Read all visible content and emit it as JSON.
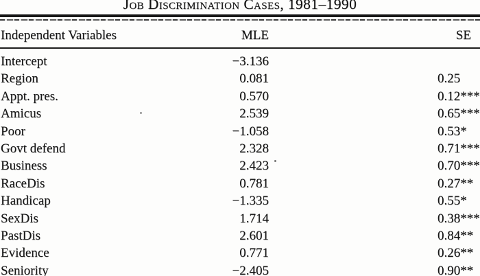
{
  "title": "Job Discrimination Cases, 1981–1990",
  "table": {
    "headers": {
      "variable": "Independent Variables",
      "mle": "MLE",
      "se": "SE"
    },
    "rows": [
      {
        "variable": "Intercept",
        "mle": "−3.136",
        "se": ""
      },
      {
        "variable": "Region",
        "mle": "0.081",
        "se": "0.25"
      },
      {
        "variable": "Appt. pres.",
        "mle": "0.570",
        "se": "0.12***"
      },
      {
        "variable": "Amicus",
        "mle": "2.539",
        "se": "0.65***"
      },
      {
        "variable": "Poor",
        "mle": "−1.058",
        "se": "0.53*"
      },
      {
        "variable": "Govt defend",
        "mle": "2.328",
        "se": "0.71***"
      },
      {
        "variable": "Business",
        "mle": "2.423",
        "se": "0.70***"
      },
      {
        "variable": "RaceDis",
        "mle": "0.781",
        "se": "0.27**"
      },
      {
        "variable": "Handicap",
        "mle": "−1.335",
        "se": "0.55*"
      },
      {
        "variable": "SexDis",
        "mle": "1.714",
        "se": "0.38***"
      },
      {
        "variable": "PastDis",
        "mle": "2.601",
        "se": "0.84**"
      },
      {
        "variable": "Evidence",
        "mle": "0.771",
        "se": "0.26**"
      },
      {
        "variable": "Seniority",
        "mle": "−2.405",
        "se": "0.90**"
      }
    ]
  },
  "colors": {
    "ink": "#161616",
    "paper": "#fdfdfc"
  }
}
